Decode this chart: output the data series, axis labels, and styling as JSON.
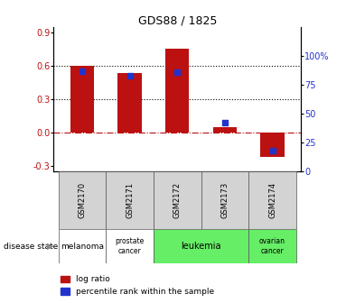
{
  "title": "GDS88 / 1825",
  "samples": [
    "GSM2170",
    "GSM2171",
    "GSM2172",
    "GSM2173",
    "GSM2174"
  ],
  "log_ratio": [
    0.6,
    0.54,
    0.76,
    0.05,
    -0.22
  ],
  "percentile_rank": [
    87,
    83,
    86,
    42,
    18
  ],
  "bar_color": "#bb1111",
  "dot_color": "#2233cc",
  "ylim_left": [
    -0.35,
    0.95
  ],
  "ylim_right": [
    0,
    125
  ],
  "yticks_left": [
    -0.3,
    0.0,
    0.3,
    0.6,
    0.9
  ],
  "yticks_right": [
    0,
    25,
    50,
    75,
    100
  ],
  "hline_y": [
    0.3,
    0.6
  ],
  "disease_spans": [
    {
      "label": "melanoma",
      "xstart": 0,
      "xend": 1,
      "color": "#ffffff",
      "fontsize": 6.5
    },
    {
      "label": "prostate\ncancer",
      "xstart": 1,
      "xend": 2,
      "color": "#ffffff",
      "fontsize": 5.5
    },
    {
      "label": "leukemia",
      "xstart": 2,
      "xend": 4,
      "color": "#66ee66",
      "fontsize": 7
    },
    {
      "label": "ovarian\ncancer",
      "xstart": 4,
      "xend": 5,
      "color": "#66ee66",
      "fontsize": 5.5
    }
  ],
  "legend_red_label": "log ratio",
  "legend_blue_label": "percentile rank within the sample",
  "disease_state_label": "disease state",
  "background_color": "#ffffff",
  "sample_box_color": "#d3d3d3"
}
